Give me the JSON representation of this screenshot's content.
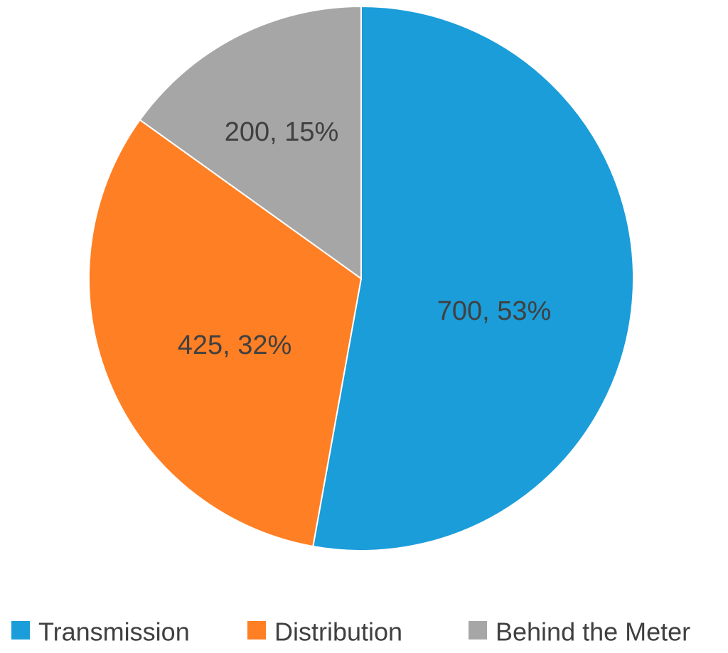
{
  "chart_data": {
    "type": "pie",
    "slices": [
      {
        "name": "Transmission",
        "value": 700,
        "label": "700, 53%",
        "color": "#1B9DD9"
      },
      {
        "name": "Distribution",
        "value": 425,
        "label": "425, 32%",
        "color": "#FF7F24"
      },
      {
        "name": "Behind the Meter",
        "value": 200,
        "label": "200, 15%",
        "color": "#A6A6A6"
      }
    ],
    "start_angle_deg": 0,
    "direction": "clockwise",
    "legend_position": "bottom"
  }
}
